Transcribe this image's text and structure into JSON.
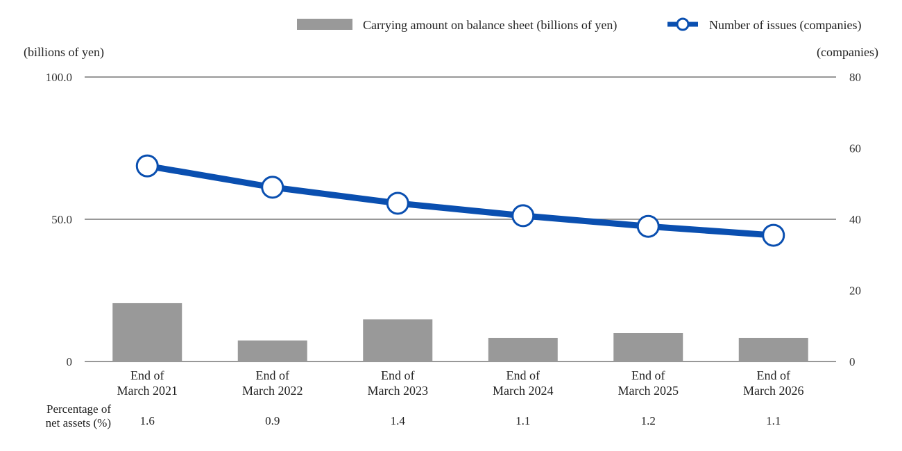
{
  "chart_data": {
    "type": "bar+line",
    "categories": [
      [
        "End of",
        "March 2021"
      ],
      [
        "End of",
        "March 2022"
      ],
      [
        "End of",
        "March 2023"
      ],
      [
        "End of",
        "March 2024"
      ],
      [
        "End of",
        "March 2025"
      ],
      [
        "End of",
        "March 2026"
      ]
    ],
    "series": [
      {
        "name": "Carrying amount on balance sheet (billions of yen)",
        "type": "bar",
        "axis": "left",
        "color": "#999999",
        "values": [
          20.5,
          7.4,
          14.8,
          8.3,
          10.0,
          8.3
        ]
      },
      {
        "name": "Number of issues (companies)",
        "type": "line",
        "axis": "right",
        "color": "#0a4fb0",
        "values": [
          55,
          49,
          44.5,
          41,
          38,
          35.5
        ]
      }
    ],
    "y_left": {
      "label": "(billions of yen)",
      "range": [
        0,
        100
      ],
      "ticks": [
        "0",
        "50.0",
        "100.0"
      ],
      "tick_values": [
        0,
        50,
        100
      ]
    },
    "y_right": {
      "label": "(companies)",
      "range": [
        0,
        80
      ],
      "ticks": [
        "0",
        "20",
        "40",
        "60",
        "80"
      ],
      "tick_values": [
        0,
        20,
        40,
        60,
        80
      ]
    },
    "percentage_row": {
      "label": [
        "Percentage of",
        "net assets (%)"
      ],
      "values": [
        "1.6",
        "0.9",
        "1.4",
        "1.1",
        "1.2",
        "1.1"
      ]
    },
    "legend_position": "top-right",
    "grid": "horizontal at left-axis major ticks"
  }
}
